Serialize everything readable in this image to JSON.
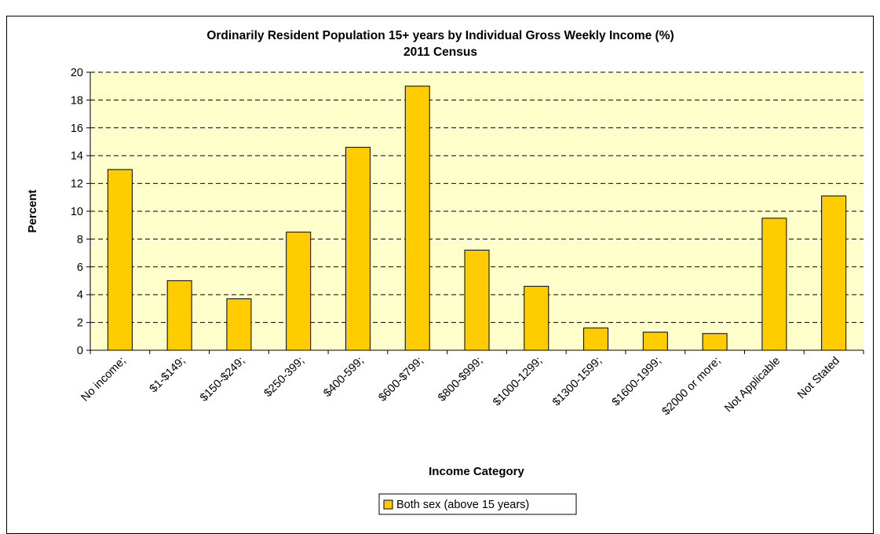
{
  "chart_data": {
    "type": "bar",
    "title": "Ordinarily Resident Population 15+ years by Individual Gross Weekly Income (%)",
    "subtitle": "2011 Census",
    "xlabel": "Income Category",
    "ylabel": "Percent",
    "ylim": [
      0,
      20
    ],
    "yticks": [
      0,
      2,
      4,
      6,
      8,
      10,
      12,
      14,
      16,
      18,
      20
    ],
    "grid": true,
    "legend_position": "bottom",
    "categories": [
      "No income;",
      "$1-$149;",
      "$150-$249;",
      "$250-399;",
      "$400-599;",
      "$600-$799;",
      "$800-$999;",
      "$1000-1299;",
      "$1300-1599;",
      "$1600-1999;",
      "$2000 or more;",
      "Not Applicable",
      "Not Stated"
    ],
    "series": [
      {
        "name": "Both sex (above 15 years)",
        "values": [
          13.0,
          5.0,
          3.7,
          8.5,
          14.6,
          19.0,
          7.2,
          4.6,
          1.6,
          1.3,
          1.2,
          9.5,
          11.1
        ]
      }
    ],
    "colors": {
      "bar": "#FFCC00",
      "bar_stroke": "#000000",
      "plot_background": "#FFFFCC",
      "gridline": "#000000"
    }
  }
}
